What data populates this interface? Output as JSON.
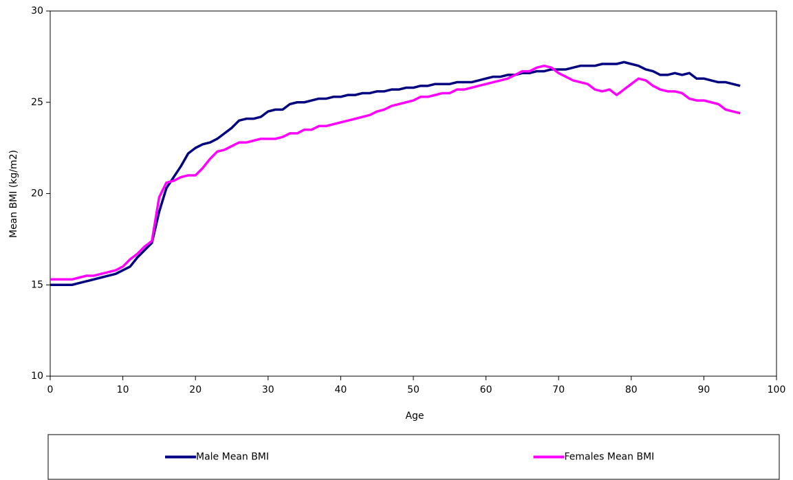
{
  "chart_data": {
    "type": "line",
    "x_label": "Age",
    "y_label": "Mean BMI (kg/m2)",
    "x": [
      0,
      1,
      2,
      3,
      4,
      5,
      6,
      7,
      8,
      9,
      10,
      11,
      12,
      13,
      14,
      15,
      16,
      17,
      18,
      19,
      20,
      21,
      22,
      23,
      24,
      25,
      26,
      27,
      28,
      29,
      30,
      31,
      32,
      33,
      34,
      35,
      36,
      37,
      38,
      39,
      40,
      41,
      42,
      43,
      44,
      45,
      46,
      47,
      48,
      49,
      50,
      51,
      52,
      53,
      54,
      55,
      56,
      57,
      58,
      59,
      60,
      61,
      62,
      63,
      64,
      65,
      66,
      67,
      68,
      69,
      70,
      71,
      72,
      73,
      74,
      75,
      76,
      77,
      78,
      79,
      80,
      81,
      82,
      83,
      84,
      85,
      86,
      87,
      88,
      89,
      90,
      91,
      92,
      93,
      94,
      95
    ],
    "series": [
      {
        "name": "Male Mean BMI",
        "color": "#000080",
        "values": [
          15.0,
          15.0,
          15.0,
          15.0,
          15.1,
          15.2,
          15.3,
          15.4,
          15.5,
          15.6,
          15.8,
          16.0,
          16.5,
          16.9,
          17.3,
          19.0,
          20.3,
          20.9,
          21.5,
          22.2,
          22.5,
          22.7,
          22.8,
          23.0,
          23.3,
          23.6,
          24.0,
          24.1,
          24.1,
          24.2,
          24.5,
          24.6,
          24.6,
          24.9,
          25.0,
          25.0,
          25.1,
          25.2,
          25.2,
          25.3,
          25.3,
          25.4,
          25.4,
          25.5,
          25.5,
          25.6,
          25.6,
          25.7,
          25.7,
          25.8,
          25.8,
          25.9,
          25.9,
          26.0,
          26.0,
          26.0,
          26.1,
          26.1,
          26.1,
          26.2,
          26.3,
          26.4,
          26.4,
          26.5,
          26.5,
          26.6,
          26.6,
          26.7,
          26.7,
          26.8,
          26.8,
          26.8,
          26.9,
          27.0,
          27.0,
          27.0,
          27.1,
          27.1,
          27.1,
          27.2,
          27.1,
          27.0,
          26.8,
          26.7,
          26.5,
          26.5,
          26.6,
          26.5,
          26.6,
          26.3,
          26.3,
          26.2,
          26.1,
          26.1,
          26.0,
          25.9
        ]
      },
      {
        "name": "Females Mean BMI",
        "color": "#ff00ff",
        "values": [
          15.3,
          15.3,
          15.3,
          15.3,
          15.4,
          15.5,
          15.5,
          15.6,
          15.7,
          15.8,
          16.0,
          16.4,
          16.7,
          17.1,
          17.4,
          19.8,
          20.6,
          20.7,
          20.9,
          21.0,
          21.0,
          21.4,
          21.9,
          22.3,
          22.4,
          22.6,
          22.8,
          22.8,
          22.9,
          23.0,
          23.0,
          23.0,
          23.1,
          23.3,
          23.3,
          23.5,
          23.5,
          23.7,
          23.7,
          23.8,
          23.9,
          24.0,
          24.1,
          24.2,
          24.3,
          24.5,
          24.6,
          24.8,
          24.9,
          25.0,
          25.1,
          25.3,
          25.3,
          25.4,
          25.5,
          25.5,
          25.7,
          25.7,
          25.8,
          25.9,
          26.0,
          26.1,
          26.2,
          26.3,
          26.5,
          26.7,
          26.7,
          26.9,
          27.0,
          26.9,
          26.6,
          26.4,
          26.2,
          26.1,
          26.0,
          25.7,
          25.6,
          25.7,
          25.4,
          25.7,
          26.0,
          26.3,
          26.2,
          25.9,
          25.7,
          25.6,
          25.6,
          25.5,
          25.2,
          25.1,
          25.1,
          25.0,
          24.9,
          24.6,
          24.5,
          24.4
        ]
      }
    ],
    "xlim": [
      0,
      100
    ],
    "xticks": [
      0,
      10,
      20,
      30,
      40,
      50,
      60,
      70,
      80,
      90,
      100
    ],
    "ylim": [
      10,
      30
    ],
    "yticks": [
      10,
      15,
      20,
      25,
      30
    ],
    "grid": false,
    "legend": "bottom"
  }
}
